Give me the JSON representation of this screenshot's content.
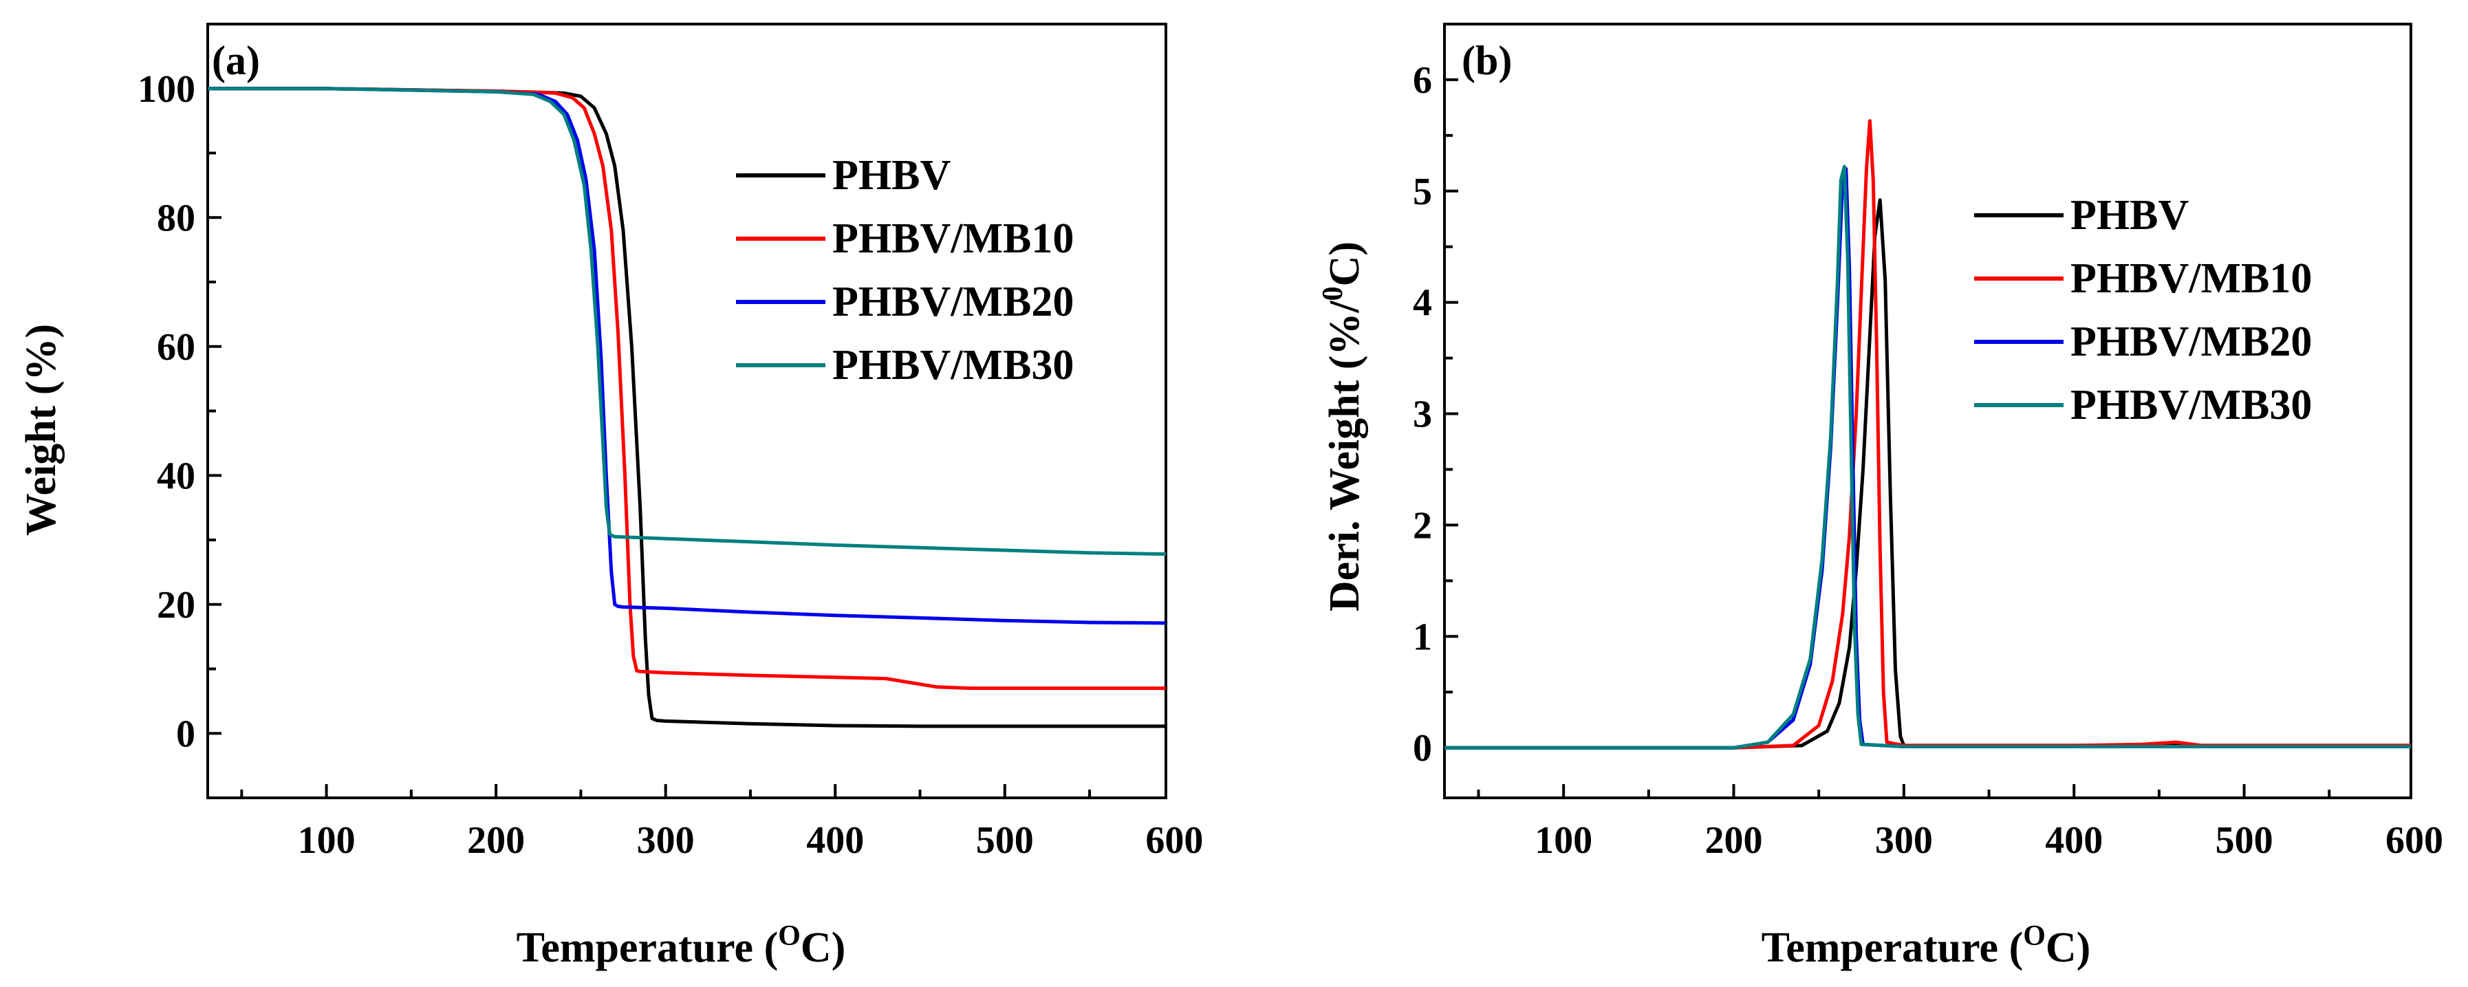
{
  "colors": {
    "PHBV": "#000000",
    "PHBV/MB10": "#ff0000",
    "PHBV/MB20": "#0000ee",
    "PHBV/MB30": "#008080"
  },
  "chart_data": [
    {
      "type": "line",
      "panel_label": "(a)",
      "xlabel_main": "Temperature (",
      "xlabel_sup": "O",
      "xlabel_end": "C)",
      "ylabel": "Weight (%)",
      "xlim": [
        30,
        595
      ],
      "ylim": [
        -10,
        110
      ],
      "xticks": [
        100,
        200,
        300,
        400,
        500,
        600
      ],
      "xtick_labels": [
        "100",
        "200",
        "300",
        "400",
        "500",
        "600"
      ],
      "yticks": [
        0,
        20,
        40,
        60,
        80,
        100
      ],
      "ytick_labels": [
        "0",
        "20",
        "40",
        "60",
        "80",
        "100"
      ],
      "grid": false,
      "legend_position": "right",
      "series": [
        {
          "name": "PHBV",
          "x": [
            30,
            100,
            200,
            240,
            250,
            258,
            265,
            270,
            275,
            280,
            285,
            288,
            290,
            292,
            295,
            300,
            350,
            400,
            450,
            500,
            550,
            595
          ],
          "y": [
            100,
            100,
            99.6,
            99.3,
            98.8,
            97,
            93,
            88,
            78,
            60,
            35,
            15,
            6,
            2.3,
            2,
            1.9,
            1.5,
            1.2,
            1.1,
            1.1,
            1.1,
            1.1
          ]
        },
        {
          "name": "PHBV/MB10",
          "x": [
            30,
            100,
            200,
            235,
            245,
            252,
            258,
            263,
            268,
            272,
            276,
            279,
            281,
            283,
            285,
            300,
            350,
            400,
            430,
            460,
            480,
            500,
            550,
            595
          ],
          "y": [
            100,
            100,
            99.6,
            99.3,
            98.6,
            97,
            93,
            88,
            78,
            62,
            40,
            20,
            12,
            9.7,
            9.6,
            9.4,
            9,
            8.7,
            8.5,
            7.2,
            7,
            7,
            7,
            7
          ]
        },
        {
          "name": "PHBV/MB20",
          "x": [
            30,
            100,
            200,
            225,
            235,
            242,
            248,
            253,
            258,
            262,
            265,
            268,
            270,
            272,
            275,
            300,
            350,
            400,
            450,
            500,
            550,
            595
          ],
          "y": [
            100,
            100,
            99.5,
            99.1,
            98,
            96,
            92,
            86,
            75,
            58,
            40,
            25,
            20,
            19.7,
            19.6,
            19.4,
            18.8,
            18.3,
            17.9,
            17.5,
            17.2,
            17.1
          ]
        },
        {
          "name": "PHBV/MB30",
          "x": [
            30,
            100,
            200,
            222,
            232,
            240,
            246,
            252,
            256,
            260,
            263,
            265,
            267,
            268,
            270,
            300,
            350,
            400,
            450,
            500,
            550,
            595
          ],
          "y": [
            100,
            100,
            99.5,
            99.1,
            98,
            96,
            92,
            85,
            75,
            60,
            45,
            35,
            31,
            30.7,
            30.5,
            30.2,
            29.7,
            29.2,
            28.8,
            28.4,
            28,
            27.8
          ]
        }
      ]
    },
    {
      "type": "line",
      "panel_label": "(b)",
      "xlabel_main": "Temperature (",
      "xlabel_sup": "O",
      "xlabel_end": "C)",
      "ylabel_main": "Deri. Weight (%/",
      "ylabel_sup": "0",
      "ylabel_end": "C)",
      "xlim": [
        30,
        598
      ],
      "ylim": [
        -0.45,
        6.5
      ],
      "xticks": [
        100,
        200,
        300,
        400,
        500,
        600
      ],
      "xtick_labels": [
        "100",
        "200",
        "300",
        "400",
        "500",
        "600"
      ],
      "yticks": [
        0,
        1,
        2,
        3,
        4,
        5,
        6
      ],
      "ytick_labels": [
        "0",
        "1",
        "2",
        "3",
        "4",
        "5",
        "6"
      ],
      "grid": false,
      "legend_position": "right",
      "series": [
        {
          "name": "PHBV",
          "x": [
            30,
            200,
            240,
            255,
            262,
            268,
            272,
            276,
            280,
            283,
            286,
            289,
            292,
            295,
            298,
            300,
            400,
            440,
            460,
            480,
            598
          ],
          "y": [
            0,
            0,
            0.02,
            0.15,
            0.4,
            0.9,
            1.6,
            2.5,
            3.7,
            4.6,
            4.92,
            4.2,
            2.3,
            0.7,
            0.1,
            0.02,
            0.02,
            0.02,
            0.02,
            0.02,
            0.02
          ]
        },
        {
          "name": "PHBV/MB10",
          "x": [
            30,
            200,
            235,
            250,
            258,
            264,
            268,
            272,
            275,
            278,
            280,
            282,
            284,
            286,
            288,
            290,
            300,
            400,
            440,
            460,
            475,
            598
          ],
          "y": [
            0,
            0,
            0.02,
            0.2,
            0.6,
            1.2,
            1.9,
            3,
            4.1,
            5.2,
            5.63,
            5.1,
            3.6,
            1.8,
            0.5,
            0.05,
            0.02,
            0.02,
            0.03,
            0.05,
            0.02,
            0.02
          ]
        },
        {
          "name": "PHBV/MB20",
          "x": [
            30,
            200,
            220,
            235,
            245,
            252,
            257,
            261,
            264,
            266,
            268,
            270,
            272,
            274,
            276,
            300,
            598
          ],
          "y": [
            0,
            0,
            0.05,
            0.25,
            0.75,
            1.6,
            2.7,
            4,
            5.1,
            5.2,
            4.3,
            2.6,
            1.0,
            0.25,
            0.03,
            0.01,
            0.01
          ]
        },
        {
          "name": "PHBV/MB30",
          "x": [
            30,
            200,
            220,
            235,
            245,
            252,
            257,
            261,
            263,
            265,
            267,
            269,
            271,
            273,
            275,
            300,
            598
          ],
          "y": [
            0,
            0,
            0.05,
            0.3,
            0.8,
            1.7,
            2.8,
            4.2,
            5.1,
            5.22,
            4.4,
            2.7,
            1.1,
            0.3,
            0.03,
            0.01,
            0.01
          ]
        }
      ]
    }
  ]
}
